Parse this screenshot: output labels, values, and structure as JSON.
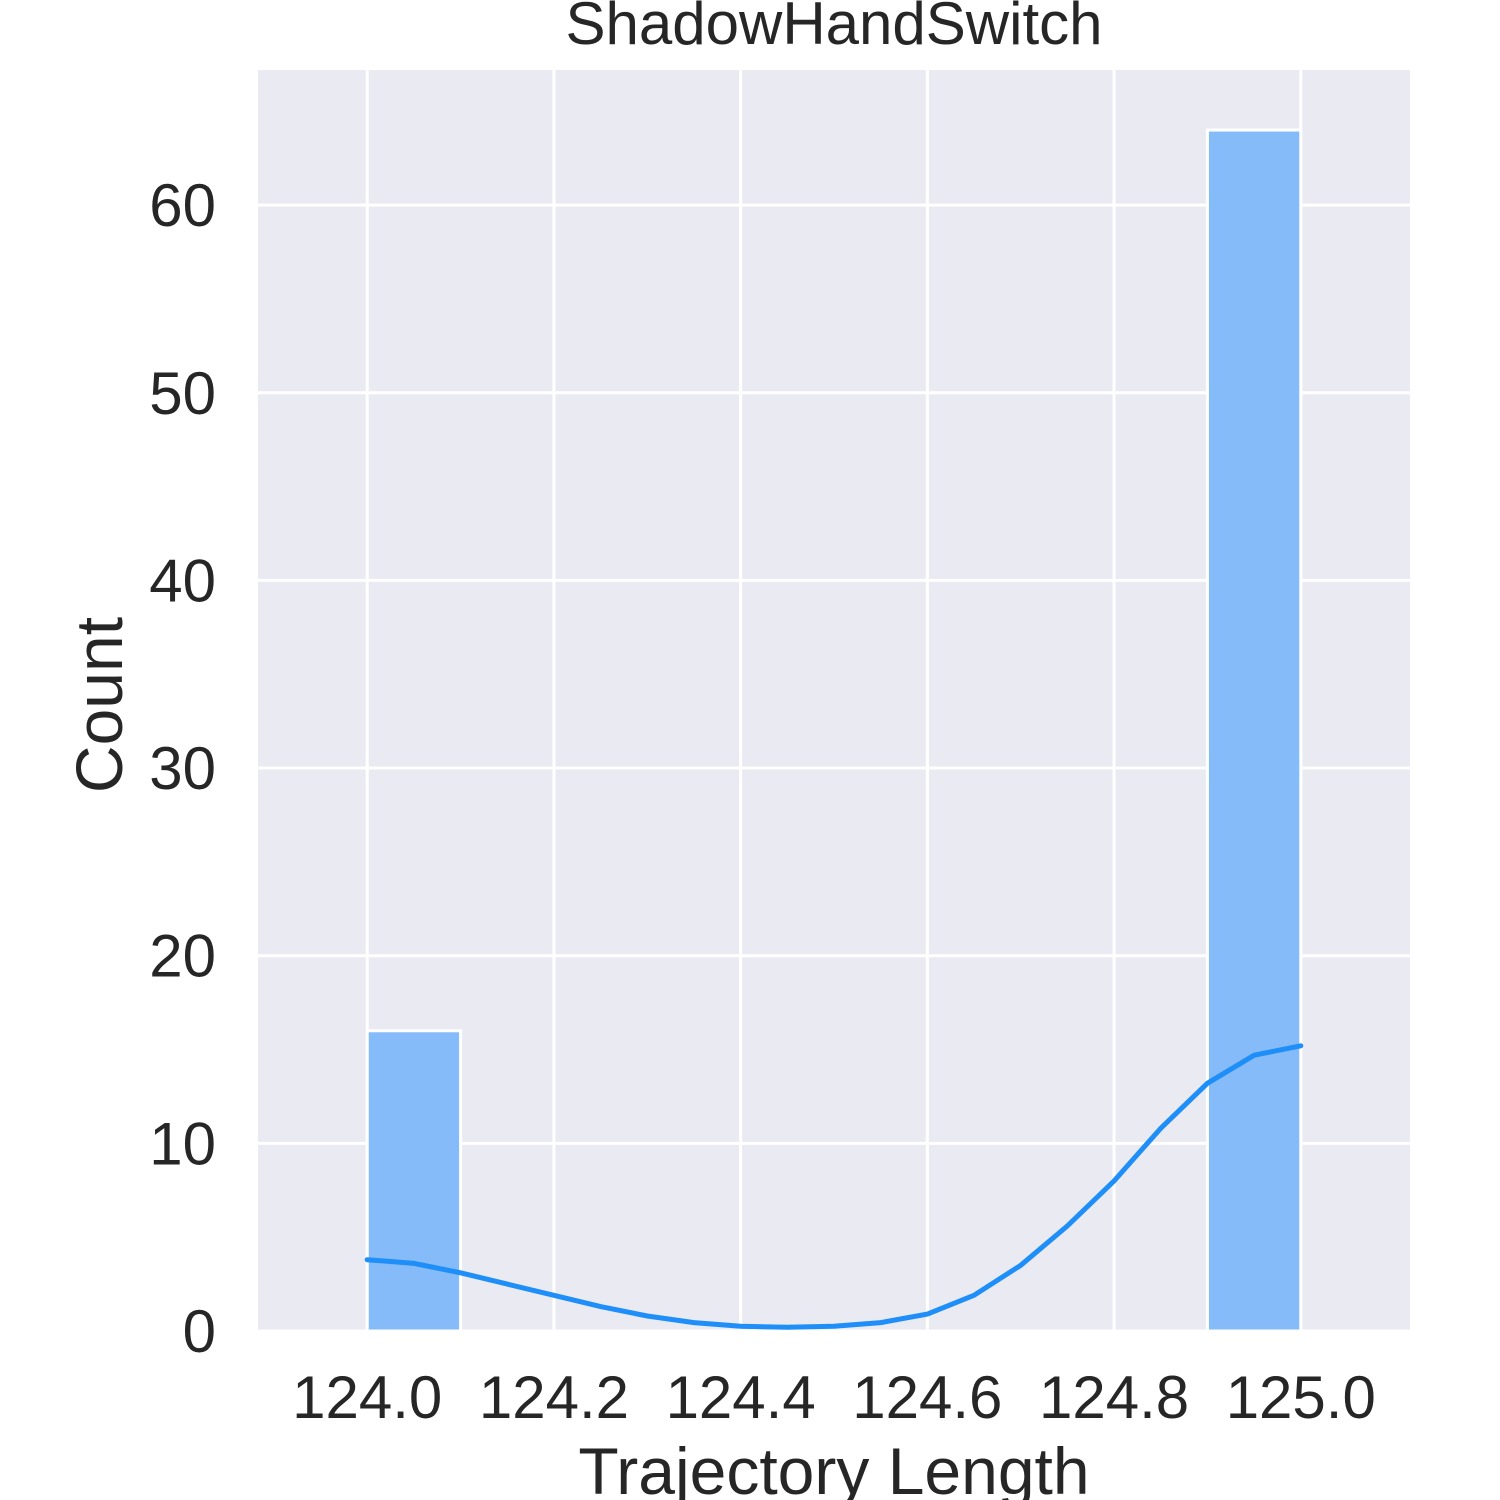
{
  "chart_data": {
    "type": "bar",
    "subtype": "histogram-with-kde",
    "title": "ShadowHandSwitch",
    "xlabel": "Trajectory Length",
    "ylabel": "Count",
    "xlim": [
      123.883,
      125.117
    ],
    "ylim": [
      0,
      67.2
    ],
    "xticks": [
      124.0,
      124.2,
      124.4,
      124.6,
      124.8,
      125.0
    ],
    "xtick_labels": [
      "124.0",
      "124.2",
      "124.4",
      "124.6",
      "124.8",
      "125.0"
    ],
    "yticks": [
      0,
      10,
      20,
      30,
      40,
      50,
      60
    ],
    "ytick_labels": [
      "0",
      "10",
      "20",
      "30",
      "40",
      "50",
      "60"
    ],
    "grid": true,
    "bars": [
      {
        "x0": 124.0,
        "x1": 124.1,
        "count": 16
      },
      {
        "x0": 124.1,
        "x1": 124.2,
        "count": 0
      },
      {
        "x0": 124.2,
        "x1": 124.3,
        "count": 0
      },
      {
        "x0": 124.3,
        "x1": 124.4,
        "count": 0
      },
      {
        "x0": 124.4,
        "x1": 124.5,
        "count": 0
      },
      {
        "x0": 124.5,
        "x1": 124.6,
        "count": 0
      },
      {
        "x0": 124.6,
        "x1": 124.7,
        "count": 0
      },
      {
        "x0": 124.7,
        "x1": 124.8,
        "count": 0
      },
      {
        "x0": 124.8,
        "x1": 124.9,
        "count": 0
      },
      {
        "x0": 124.9,
        "x1": 125.0,
        "count": 64
      }
    ],
    "kde": {
      "x": [
        124.0,
        124.05,
        124.1,
        124.15,
        124.2,
        124.25,
        124.3,
        124.35,
        124.4,
        124.45,
        124.5,
        124.55,
        124.6,
        124.65,
        124.7,
        124.75,
        124.8,
        124.85,
        124.9,
        124.95,
        125.0
      ],
      "y": [
        3.8,
        3.6,
        3.1,
        2.5,
        1.9,
        1.3,
        0.8,
        0.45,
        0.25,
        0.2,
        0.25,
        0.45,
        0.9,
        1.9,
        3.5,
        5.6,
        8.0,
        10.8,
        13.2,
        14.7,
        15.2
      ]
    },
    "colors": {
      "background": "#eaeaf2",
      "grid": "#ffffff",
      "bar_fill": "#84bbf8",
      "bar_edge": "#ffffff",
      "kde_line": "#1e8ef8"
    }
  }
}
